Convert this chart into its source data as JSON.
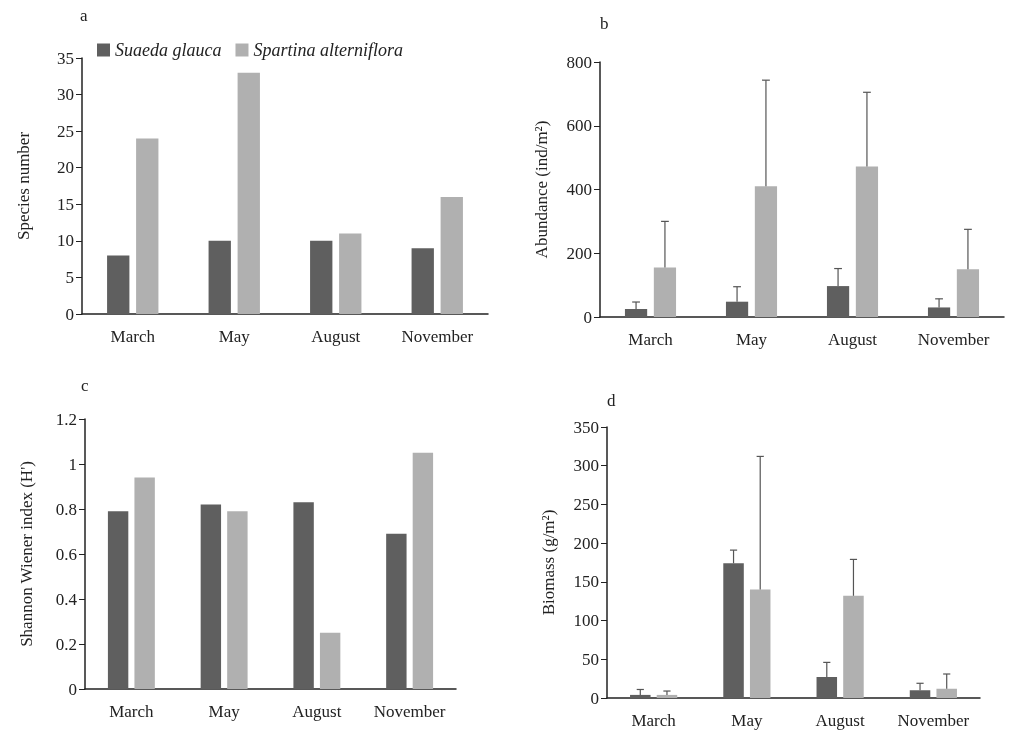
{
  "chart_data": [
    {
      "type": "bar",
      "title": "a",
      "ylabel": "Species number",
      "categories": [
        "March",
        "May",
        "August",
        "November"
      ],
      "legend": "top",
      "series": [
        {
          "name": "Suaeda glauca",
          "color": "#5f5f5f",
          "values": [
            8,
            10,
            10,
            9
          ]
        },
        {
          "name": "Spartina alterniflora",
          "color": "#b0b0b0",
          "values": [
            24,
            33,
            11,
            16
          ]
        }
      ],
      "ylim": [
        0,
        35
      ],
      "yticks": [
        0,
        5,
        10,
        15,
        20,
        25,
        30,
        35
      ]
    },
    {
      "type": "bar",
      "title": "b",
      "ylabel": "Abundance (ind/m²)",
      "categories": [
        "March",
        "May",
        "August",
        "November"
      ],
      "series": [
        {
          "color": "#5f5f5f",
          "values": [
            25,
            48,
            97,
            30
          ],
          "errors": [
            [
              25,
              47
            ],
            [
              48,
              95
            ],
            [
              97,
              152
            ],
            [
              30,
              57
            ]
          ]
        },
        {
          "color": "#b0b0b0",
          "values": [
            155,
            410,
            472,
            150
          ],
          "errors": [
            [
              155,
              300
            ],
            [
              410,
              743
            ],
            [
              472,
              705
            ],
            [
              150,
              275
            ]
          ]
        }
      ],
      "ylim": [
        0,
        800
      ],
      "yticks": [
        0,
        200,
        400,
        600,
        800
      ]
    },
    {
      "type": "bar",
      "title": "c",
      "ylabel": "Shannon Wiener index (H')",
      "categories": [
        "March",
        "May",
        "August",
        "November"
      ],
      "series": [
        {
          "color": "#5f5f5f",
          "values": [
            0.79,
            0.82,
            0.83,
            0.69
          ]
        },
        {
          "color": "#b0b0b0",
          "values": [
            0.94,
            0.79,
            0.25,
            1.05
          ]
        }
      ],
      "ylim": [
        0,
        1.2
      ],
      "yticks": [
        0,
        0.2,
        0.4,
        0.6,
        0.8,
        1,
        1.2
      ]
    },
    {
      "type": "bar",
      "title": "d",
      "ylabel": "Biomass (g/m²)",
      "categories": [
        "March",
        "May",
        "August",
        "November"
      ],
      "series": [
        {
          "color": "#5f5f5f",
          "values": [
            4,
            174,
            27,
            10
          ],
          "errors": [
            [
              4,
              11
            ],
            [
              174,
              191
            ],
            [
              27,
              46
            ],
            [
              10,
              19
            ]
          ]
        },
        {
          "color": "#b0b0b0",
          "values": [
            4,
            140,
            132,
            12
          ],
          "errors": [
            [
              4,
              9
            ],
            [
              140,
              312
            ],
            [
              132,
              179
            ],
            [
              12,
              31
            ]
          ]
        }
      ],
      "ylim": [
        0,
        350
      ],
      "yticks": [
        0,
        50,
        100,
        150,
        200,
        250,
        300,
        350
      ]
    }
  ]
}
